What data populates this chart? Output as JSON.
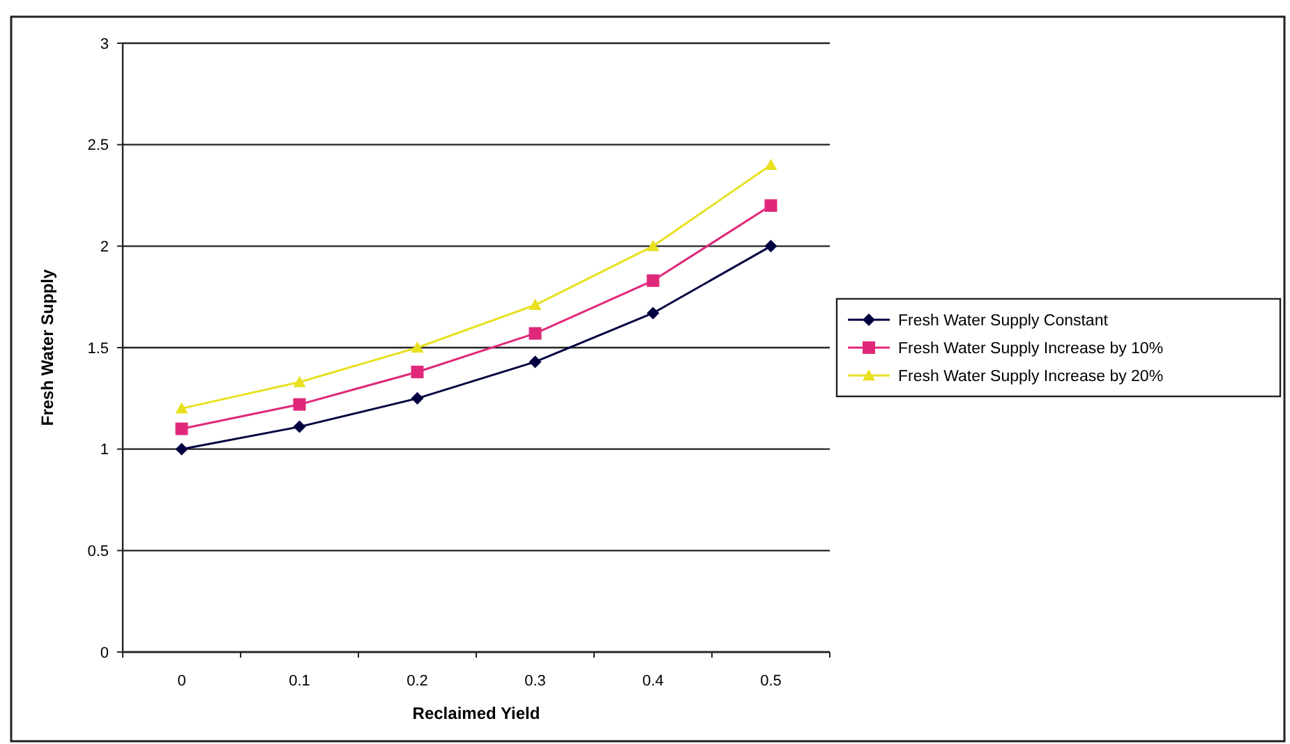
{
  "chart_data": {
    "type": "line",
    "xlabel": "Reclaimed Yield",
    "ylabel": "Fresh Water Supply",
    "categories": [
      "0",
      "0.1",
      "0.2",
      "0.3",
      "0.4",
      "0.5"
    ],
    "ylim": [
      0,
      3
    ],
    "yticks": [
      0,
      0.5,
      1,
      1.5,
      2,
      2.5,
      3
    ],
    "grid": "y",
    "legend": "right",
    "line_style": "solid",
    "series": [
      {
        "name": "Fresh Water Supply Constant",
        "color": "#000040",
        "marker": "diamond",
        "values": [
          1,
          1.11,
          1.25,
          1.43,
          1.67,
          2
        ]
      },
      {
        "name": "Fresh Water Supply Increase by 10%",
        "color": "#e0287a",
        "marker": "square",
        "values": [
          1.1,
          1.22,
          1.38,
          1.57,
          1.83,
          2.2
        ]
      },
      {
        "name": "Fresh Water Supply Increase by 20%",
        "color": "#e8e020",
        "marker": "triangle",
        "values": [
          1.2,
          1.33,
          1.5,
          1.71,
          2,
          2.4
        ]
      }
    ]
  }
}
